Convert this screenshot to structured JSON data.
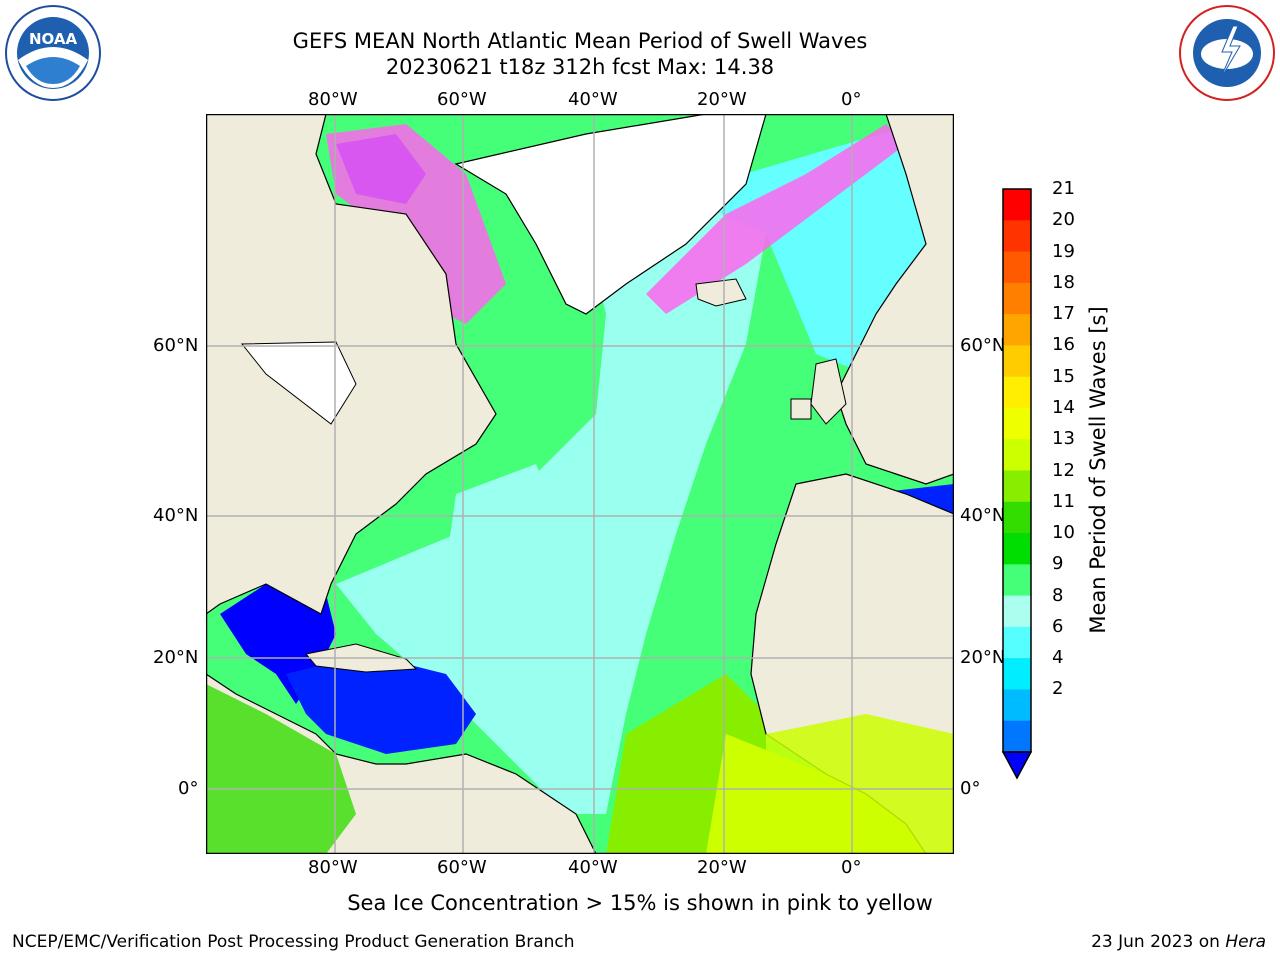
{
  "header": {
    "title_line1": "GEFS MEAN North Atlantic Mean Period of Swell Waves",
    "title_line2": "20230621 t18z 312h fcst   Max: 14.38"
  },
  "logos": {
    "noaa_text": "NOAA",
    "noaa_ring_text": "NATIONAL OCEANIC AND ATMOSPHERIC ADMINISTRATION · U.S. DEPARTMENT OF COMMERCE",
    "nws_ring_text": "NATIONAL WEATHER SERVICE"
  },
  "map": {
    "lon_labels": [
      "80°W",
      "60°W",
      "40°W",
      "20°W",
      "0°"
    ],
    "lat_labels": [
      "60°N",
      "40°N",
      "20°N",
      "0°"
    ],
    "colors": {
      "land": "#efecdc",
      "ice_free_white": "#ffffff",
      "grid": "#b0b0b0"
    }
  },
  "colorbar": {
    "label": "Mean Period of Swell Waves [s]",
    "ticks": [
      "21",
      "20",
      "19",
      "18",
      "17",
      "16",
      "15",
      "14",
      "13",
      "12",
      "11",
      "10",
      "9",
      "8",
      "6",
      "4",
      "2"
    ],
    "colors": [
      "#ff0000",
      "#ff3300",
      "#ff5a00",
      "#ff7f00",
      "#ffa500",
      "#ffcc00",
      "#ffee00",
      "#eeff00",
      "#ccff00",
      "#88ee00",
      "#33dd00",
      "#00dd00",
      "#44ff77",
      "#aaffee",
      "#55ffff",
      "#00eeff",
      "#00bbff",
      "#0077ff"
    ],
    "extend_color": "#0000ff"
  },
  "caption": "Sea Ice Concentration > 15% is shown in pink to yellow",
  "footer": {
    "left": "NCEP/EMC/Verification Post Processing Product Generation Branch",
    "right_prefix": "23 Jun 2023 on ",
    "right_machine": "Hera"
  }
}
